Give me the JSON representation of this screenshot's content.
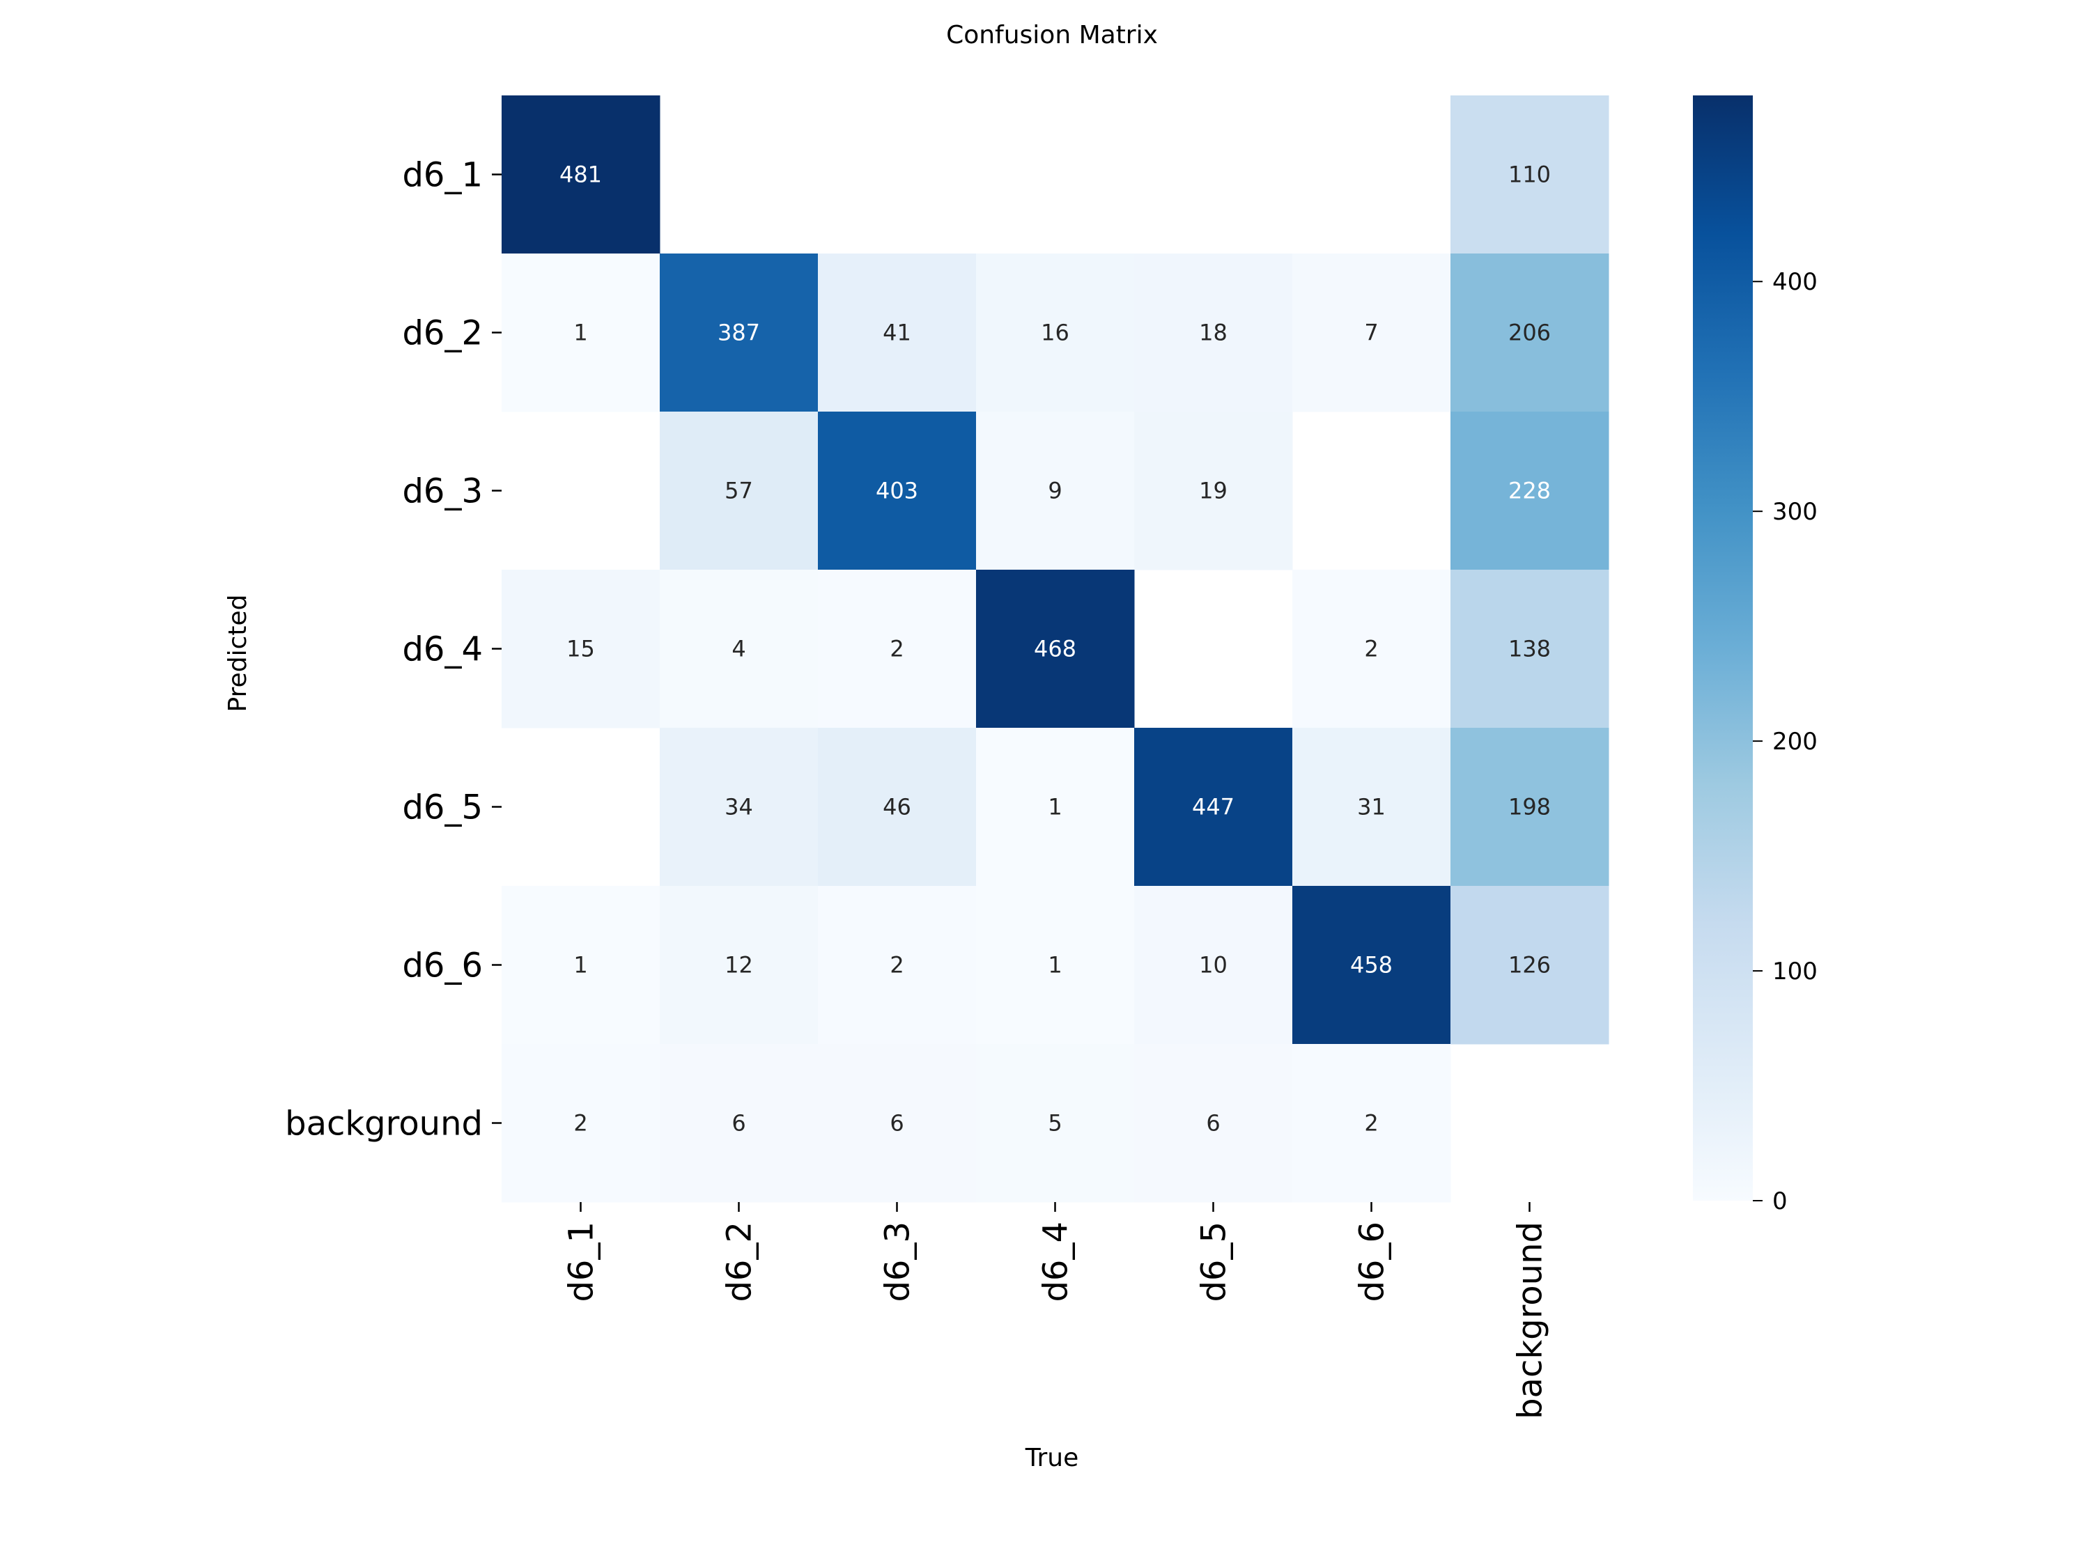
{
  "chart_data": {
    "type": "heatmap",
    "title": "Confusion Matrix",
    "xlabel": "True",
    "ylabel": "Predicted",
    "x_categories": [
      "d6_1",
      "d6_2",
      "d6_3",
      "d6_4",
      "d6_5",
      "d6_6",
      "background"
    ],
    "y_categories": [
      "d6_1",
      "d6_2",
      "d6_3",
      "d6_4",
      "d6_5",
      "d6_6",
      "background"
    ],
    "values": [
      [
        481,
        null,
        null,
        null,
        null,
        null,
        110
      ],
      [
        1,
        387,
        41,
        16,
        18,
        7,
        206
      ],
      [
        null,
        57,
        403,
        9,
        19,
        null,
        228
      ],
      [
        15,
        4,
        2,
        468,
        null,
        2,
        138
      ],
      [
        null,
        34,
        46,
        1,
        447,
        31,
        198
      ],
      [
        1,
        12,
        2,
        1,
        10,
        458,
        126
      ],
      [
        2,
        6,
        6,
        5,
        6,
        2,
        null
      ]
    ],
    "colormap": "Blues",
    "colorbar": {
      "vmin": 0,
      "vmax": 481,
      "ticks": [
        0,
        100,
        200,
        300,
        400
      ]
    }
  }
}
